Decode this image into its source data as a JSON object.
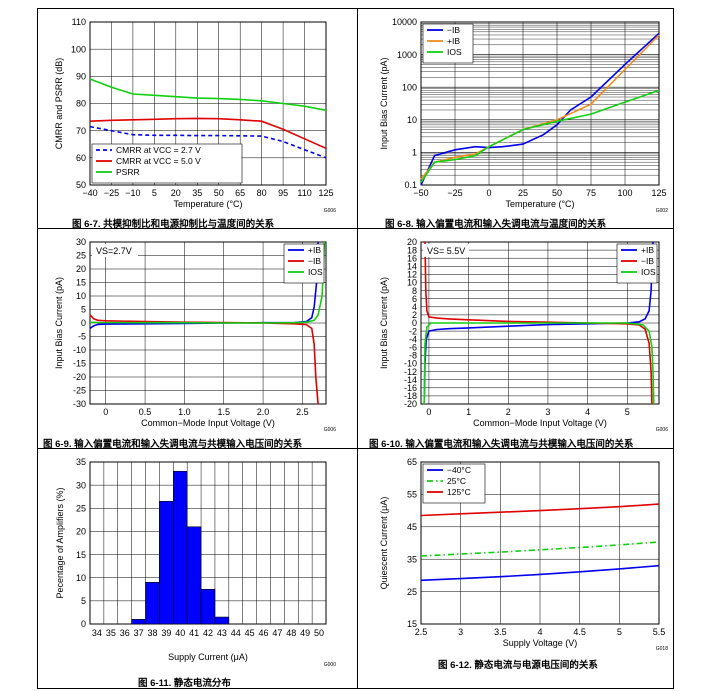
{
  "captions": [
    "图 6-7. 共模抑制比和电源抑制比与温度间的关系",
    "图 6-8. 输入偏置电流和输入失调电流与温度间的关系",
    "图 6-9. 输入偏置电流和输入失调电流与共模输入电压间的关系",
    "图 6-10. 输入偏置电流和输入失调电流与共模输入电压间的关系",
    "图 6-11. 静态电流分布",
    "图 6-12. 静态电流与电源电压间的关系"
  ],
  "colors": {
    "blue": "#0000ee",
    "orange": "#f08c1e",
    "red": "#e00000",
    "green": "#10d010",
    "bar": "#0000ff"
  },
  "chart_data": [
    {
      "id": "fig67",
      "type": "line",
      "xlabel": "Temperature (°C)",
      "ylabel": "CMRR and PSRR (dB)",
      "xlim": [
        -40,
        125
      ],
      "ylim": [
        50,
        110
      ],
      "xticks": [
        -40,
        -25,
        -10,
        5,
        20,
        35,
        50,
        65,
        80,
        95,
        110,
        125
      ],
      "yticks": [
        50,
        60,
        70,
        80,
        90,
        100,
        110
      ],
      "legend_position": "bottom-left",
      "code": "G006",
      "series": [
        {
          "name": "CMRR at VCC = 2.7 V",
          "color": "blue",
          "dash": "4,3",
          "x": [
            -40,
            -25,
            -10,
            5,
            20,
            35,
            50,
            65,
            80,
            95,
            110,
            125
          ],
          "y": [
            71.5,
            70,
            68.5,
            68.3,
            68.3,
            68.2,
            68.2,
            68.1,
            68,
            66,
            63,
            60
          ]
        },
        {
          "name": "CMRR at VCC = 5.0 V",
          "color": "red",
          "dash": "",
          "x": [
            -40,
            -25,
            -10,
            5,
            20,
            35,
            50,
            65,
            80,
            95,
            110,
            125
          ],
          "y": [
            73.5,
            73.8,
            74,
            74.2,
            74.4,
            74.5,
            74.4,
            74,
            73.5,
            70.5,
            67,
            63.5
          ]
        },
        {
          "name": "PSRR",
          "color": "green",
          "dash": "",
          "x": [
            -40,
            -25,
            -10,
            5,
            20,
            35,
            50,
            65,
            80,
            95,
            110,
            125
          ],
          "y": [
            89,
            86,
            83.5,
            83,
            82.5,
            82,
            81.8,
            81.5,
            81,
            80,
            79,
            77.5
          ]
        }
      ]
    },
    {
      "id": "fig68",
      "type": "line",
      "log_y": true,
      "xlabel": "Temperature (°C)",
      "ylabel": "Input Bias Current (pA)",
      "xlim": [
        -50,
        125
      ],
      "ylim": [
        0.1,
        10000
      ],
      "xticks": [
        -50,
        -25,
        0,
        25,
        50,
        75,
        100,
        125
      ],
      "yticks": [
        0.1,
        1,
        10,
        100,
        1000,
        10000
      ],
      "ytick_labels": [
        "0.1",
        "1",
        "10",
        "100",
        "1000",
        "10000"
      ],
      "legend_position": "top-left",
      "code": "G002",
      "series": [
        {
          "name": "−IB",
          "color": "blue",
          "x": [
            -50,
            -40,
            -25,
            -10,
            0,
            10,
            25,
            40,
            50,
            60,
            75,
            100,
            125
          ],
          "y": [
            0.1,
            0.8,
            1.2,
            1.5,
            1.4,
            1.5,
            1.8,
            3.5,
            7,
            20,
            50,
            500,
            4500
          ]
        },
        {
          "name": "+IB",
          "color": "orange",
          "x": [
            -50,
            -40,
            -25,
            -10,
            0,
            25,
            50,
            75,
            100,
            125
          ],
          "y": [
            0.15,
            0.5,
            0.7,
            0.9,
            1.5,
            5,
            10,
            30,
            350,
            4000
          ]
        },
        {
          "name": "IOS",
          "color": "green",
          "x": [
            -50,
            -40,
            -25,
            -10,
            0,
            25,
            50,
            75,
            100,
            125
          ],
          "y": [
            0.12,
            0.5,
            0.6,
            0.8,
            1.5,
            5,
            9,
            15,
            35,
            80
          ]
        }
      ]
    },
    {
      "id": "fig69",
      "type": "line",
      "xlabel": "Common−Mode Input Voltage (V)",
      "ylabel": "Input Bias Current (pA)",
      "xlim": [
        -0.2,
        2.8
      ],
      "ylim": [
        -30,
        30
      ],
      "xticks": [
        0,
        0.5,
        1.0,
        1.5,
        2.0,
        2.5
      ],
      "xtick_labels": [
        "0",
        "0.5",
        "1.0",
        "1.5",
        "2.0",
        "2.5"
      ],
      "yticks": [
        -30,
        -25,
        -20,
        -15,
        -10,
        -5,
        0,
        5,
        10,
        15,
        20,
        25,
        30
      ],
      "annotation": "VS=2.7V",
      "legend_position": "top-right",
      "code": "G006",
      "series": [
        {
          "name": "+IB",
          "color": "blue",
          "x": [
            -0.2,
            -0.15,
            -0.1,
            0,
            0.5,
            1,
            1.5,
            2,
            2.4,
            2.55,
            2.62,
            2.65,
            2.68,
            2.7
          ],
          "y": [
            -2,
            -1,
            -0.5,
            -0.4,
            -0.3,
            -0.2,
            0,
            0.1,
            0.2,
            0.5,
            2,
            6,
            15,
            30
          ]
        },
        {
          "name": "−IB",
          "color": "red",
          "x": [
            -0.2,
            -0.15,
            -0.1,
            0,
            0.5,
            1,
            1.5,
            2,
            2.4,
            2.55,
            2.62,
            2.65,
            2.67,
            2.7
          ],
          "y": [
            3,
            1.5,
            1,
            0.8,
            0.5,
            0.3,
            0.2,
            0,
            -0.3,
            -0.6,
            -2,
            -8,
            -20,
            -30
          ]
        },
        {
          "name": "IOS",
          "color": "green",
          "x": [
            -0.2,
            -0.1,
            0.5,
            1,
            1.5,
            2,
            2.4,
            2.55,
            2.65,
            2.7,
            2.75,
            2.78
          ],
          "y": [
            0.3,
            0.2,
            0.1,
            0.1,
            0,
            0,
            0.1,
            0.3,
            1,
            3,
            10,
            30
          ]
        }
      ]
    },
    {
      "id": "fig610",
      "type": "line",
      "xlabel": "Common−Mode Input Voltage (V)",
      "ylabel": "Input Bias Current (pA)",
      "xlim": [
        -0.2,
        5.8
      ],
      "ylim": [
        -20,
        20
      ],
      "xticks": [
        0,
        1,
        2,
        3,
        4,
        5
      ],
      "yticks": [
        -20,
        -18,
        -16,
        -14,
        -12,
        -10,
        -8,
        -6,
        -4,
        -2,
        0,
        2,
        4,
        6,
        8,
        10,
        12,
        14,
        16,
        18,
        20
      ],
      "annotation": "VS= 5.5V",
      "legend_position": "top-right",
      "code": "G006",
      "series": [
        {
          "name": "+IB",
          "color": "blue",
          "x": [
            -0.12,
            -0.1,
            -0.07,
            0,
            0.2,
            0.5,
            1,
            2,
            3,
            4,
            5,
            5.3,
            5.45,
            5.55,
            5.6,
            5.65
          ],
          "y": [
            -20,
            -10,
            -4,
            -2,
            -1.6,
            -1.4,
            -1.2,
            -0.8,
            -0.4,
            -0.2,
            0,
            0.3,
            1,
            3,
            8,
            20
          ]
        },
        {
          "name": "−IB",
          "color": "red",
          "x": [
            -0.1,
            -0.08,
            -0.05,
            0,
            0.2,
            0.5,
            1,
            2,
            3,
            4,
            5,
            5.3,
            5.45,
            5.55,
            5.6,
            5.62
          ],
          "y": [
            20,
            8,
            3,
            1.5,
            1.2,
            1,
            0.8,
            0.4,
            0.2,
            0,
            -0.2,
            -0.5,
            -1.5,
            -5,
            -12,
            -20
          ]
        },
        {
          "name": "IOS",
          "color": "green",
          "x": [
            -0.12,
            -0.1,
            -0.05,
            0.05,
            0.5,
            1,
            2,
            3,
            4,
            5,
            5.4,
            5.55,
            5.62,
            5.65,
            5.67
          ],
          "y": [
            -20,
            -5,
            -1,
            0,
            0,
            0,
            0,
            0,
            0,
            0,
            -0.5,
            -2,
            -6,
            -12,
            -20
          ]
        }
      ]
    },
    {
      "id": "fig611",
      "type": "bar",
      "xlabel": "Supply Current (μA)",
      "ylabel": "Pecentage of Amplifiers (%)",
      "categories": [
        "34",
        "35",
        "36",
        "37",
        "38",
        "39",
        "40",
        "41",
        "42",
        "43",
        "44",
        "45",
        "46",
        "47",
        "48",
        "49",
        "50"
      ],
      "values": [
        0,
        0,
        0,
        1,
        9,
        26.5,
        33,
        21,
        7.5,
        1.5,
        0,
        0,
        0,
        0,
        0,
        0,
        0
      ],
      "ylim": [
        0,
        35
      ],
      "yticks": [
        0,
        5,
        10,
        15,
        20,
        25,
        30,
        35
      ],
      "code": "G000"
    },
    {
      "id": "fig612",
      "type": "line",
      "xlabel": "Supply Voltage (V)",
      "ylabel": "Quiescent Current (μA)",
      "xlim": [
        2.5,
        5.5
      ],
      "ylim": [
        15,
        65
      ],
      "xticks": [
        2.5,
        3,
        3.5,
        4,
        4.5,
        5,
        5.5
      ],
      "yticks": [
        15,
        25,
        35,
        45,
        55,
        65
      ],
      "legend_position": "top-left",
      "code": "G018",
      "series": [
        {
          "name": "−40°C",
          "color": "blue",
          "dash": "",
          "x": [
            2.5,
            3,
            3.5,
            4,
            4.5,
            5,
            5.5
          ],
          "y": [
            28.5,
            29,
            29.6,
            30.3,
            31.1,
            32,
            33
          ]
        },
        {
          "name": "25°C",
          "color": "green",
          "dash": "6,3,1.5,3",
          "x": [
            2.5,
            3,
            3.5,
            4,
            4.5,
            5,
            5.5
          ],
          "y": [
            36,
            36.6,
            37.2,
            37.9,
            38.6,
            39.4,
            40.3
          ]
        },
        {
          "name": "125°C",
          "color": "red",
          "dash": "",
          "x": [
            2.5,
            3,
            3.5,
            4,
            4.5,
            5,
            5.5
          ],
          "y": [
            48.5,
            49,
            49.5,
            50,
            50.6,
            51.2,
            52
          ]
        }
      ]
    }
  ]
}
